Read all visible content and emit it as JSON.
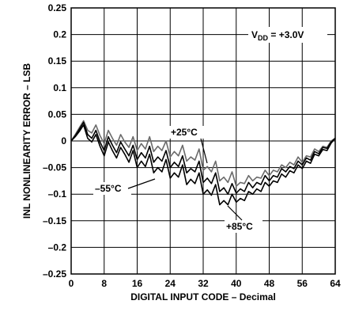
{
  "chart_data": {
    "type": "line",
    "xlabel": "DIGITAL INPUT CODE – Decimal",
    "ylabel": "INL NONLINEARITY ERROR – LSB",
    "xlim": [
      0,
      64
    ],
    "ylim": [
      -0.25,
      0.25
    ],
    "xticks": [
      0,
      8,
      16,
      24,
      32,
      40,
      48,
      56,
      64
    ],
    "xtick_labels": [
      "0",
      "8",
      "16",
      "24",
      "32",
      "40",
      "48",
      "56",
      "64"
    ],
    "yticks": [
      0.25,
      0.2,
      0.15,
      0.1,
      0.05,
      0,
      -0.05,
      -0.1,
      -0.15,
      -0.2,
      -0.25
    ],
    "ytick_labels": [
      "0.25",
      "0.2",
      "0.15",
      "0.1",
      "0.05",
      "0",
      "–0.05",
      "–0.1",
      "–0.15",
      "–0.2",
      "–0.25"
    ],
    "grid": true,
    "condition_label": {
      "main": "V",
      "sub": "DD",
      "rest": " = +3.0V"
    },
    "annotations": [
      "+25°C",
      "–55°C",
      "+85°C"
    ],
    "series": [
      {
        "name": "+25°C",
        "color": "#6b6b6b",
        "x": [
          0,
          1,
          2,
          3,
          4,
          5,
          6,
          7,
          8,
          9,
          10,
          11,
          12,
          13,
          14,
          15,
          16,
          17,
          18,
          19,
          20,
          21,
          22,
          23,
          24,
          25,
          26,
          27,
          28,
          29,
          30,
          31,
          32,
          33,
          34,
          35,
          36,
          37,
          38,
          39,
          40,
          41,
          42,
          43,
          44,
          45,
          46,
          47,
          48,
          49,
          50,
          51,
          52,
          53,
          54,
          55,
          56,
          57,
          58,
          59,
          60,
          61,
          62,
          63,
          64
        ],
        "y": [
          0,
          0.012,
          0.025,
          0.038,
          0.02,
          0.015,
          0.03,
          0.01,
          -0.005,
          0.02,
          0.005,
          -0.008,
          0.012,
          -0.002,
          -0.012,
          0.008,
          -0.018,
          -0.005,
          -0.015,
          0.008,
          -0.02,
          -0.01,
          -0.018,
          0.0,
          -0.03,
          -0.02,
          -0.028,
          -0.008,
          -0.038,
          -0.03,
          -0.036,
          -0.015,
          -0.055,
          -0.048,
          -0.058,
          -0.038,
          -0.075,
          -0.068,
          -0.078,
          -0.058,
          -0.085,
          -0.078,
          -0.08,
          -0.065,
          -0.075,
          -0.068,
          -0.07,
          -0.055,
          -0.065,
          -0.055,
          -0.058,
          -0.045,
          -0.05,
          -0.04,
          -0.045,
          -0.03,
          -0.04,
          -0.028,
          -0.03,
          -0.015,
          -0.02,
          -0.01,
          -0.012,
          0.0,
          0.005
        ]
      },
      {
        "name": "–55°C",
        "color": "#000000",
        "x": [
          0,
          1,
          2,
          3,
          4,
          5,
          6,
          7,
          8,
          9,
          10,
          11,
          12,
          13,
          14,
          15,
          16,
          17,
          18,
          19,
          20,
          21,
          22,
          23,
          24,
          25,
          26,
          27,
          28,
          29,
          30,
          31,
          32,
          33,
          34,
          35,
          36,
          37,
          38,
          39,
          40,
          41,
          42,
          43,
          44,
          45,
          46,
          47,
          48,
          49,
          50,
          51,
          52,
          53,
          54,
          55,
          56,
          57,
          58,
          59,
          60,
          61,
          62,
          63,
          64
        ],
        "y": [
          0,
          0.01,
          0.022,
          0.035,
          0.012,
          0.005,
          0.02,
          -0.002,
          -0.018,
          0.008,
          -0.008,
          -0.022,
          -0.002,
          -0.015,
          -0.028,
          -0.008,
          -0.035,
          -0.022,
          -0.032,
          -0.01,
          -0.04,
          -0.03,
          -0.038,
          -0.018,
          -0.05,
          -0.04,
          -0.048,
          -0.028,
          -0.06,
          -0.052,
          -0.058,
          -0.038,
          -0.078,
          -0.07,
          -0.08,
          -0.06,
          -0.095,
          -0.088,
          -0.1,
          -0.08,
          -0.098,
          -0.09,
          -0.095,
          -0.078,
          -0.088,
          -0.078,
          -0.082,
          -0.065,
          -0.075,
          -0.065,
          -0.068,
          -0.052,
          -0.058,
          -0.048,
          -0.052,
          -0.038,
          -0.045,
          -0.032,
          -0.036,
          -0.02,
          -0.024,
          -0.012,
          -0.014,
          -0.002,
          0.005
        ]
      },
      {
        "name": "+85°C",
        "color": "#000000",
        "x": [
          0,
          1,
          2,
          3,
          4,
          5,
          6,
          7,
          8,
          9,
          10,
          11,
          12,
          13,
          14,
          15,
          16,
          17,
          18,
          19,
          20,
          21,
          22,
          23,
          24,
          25,
          26,
          27,
          28,
          29,
          30,
          31,
          32,
          33,
          34,
          35,
          36,
          37,
          38,
          39,
          40,
          41,
          42,
          43,
          44,
          45,
          46,
          47,
          48,
          49,
          50,
          51,
          52,
          53,
          54,
          55,
          56,
          57,
          58,
          59,
          60,
          61,
          62,
          63,
          64
        ],
        "y": [
          0,
          0.008,
          0.018,
          0.03,
          0.005,
          -0.002,
          0.012,
          -0.01,
          -0.028,
          -0.002,
          -0.018,
          -0.032,
          -0.012,
          -0.025,
          -0.04,
          -0.018,
          -0.05,
          -0.038,
          -0.048,
          -0.025,
          -0.06,
          -0.05,
          -0.058,
          -0.035,
          -0.07,
          -0.06,
          -0.068,
          -0.045,
          -0.082,
          -0.072,
          -0.08,
          -0.06,
          -0.1,
          -0.092,
          -0.102,
          -0.082,
          -0.12,
          -0.112,
          -0.12,
          -0.1,
          -0.115,
          -0.108,
          -0.112,
          -0.095,
          -0.1,
          -0.09,
          -0.095,
          -0.078,
          -0.085,
          -0.075,
          -0.078,
          -0.062,
          -0.068,
          -0.056,
          -0.06,
          -0.045,
          -0.052,
          -0.038,
          -0.042,
          -0.025,
          -0.028,
          -0.016,
          -0.018,
          -0.004,
          0.005
        ]
      }
    ]
  }
}
